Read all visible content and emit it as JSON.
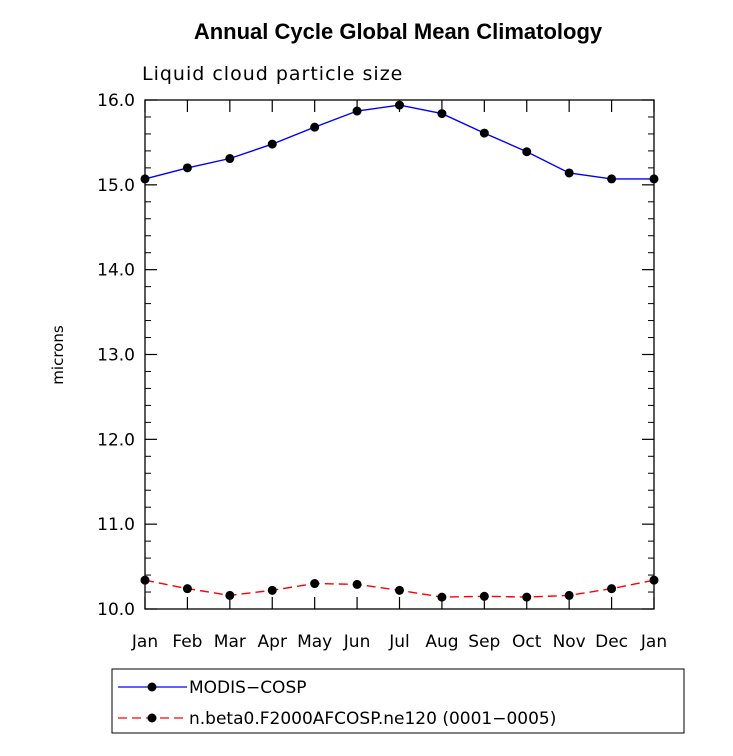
{
  "chart_data": {
    "type": "line",
    "title": "Annual Cycle Global Mean Climatology",
    "subtitle": "Liquid cloud particle size",
    "ylabel": "microns",
    "xlabel": "",
    "ylim": [
      10.0,
      16.0
    ],
    "yticks": [
      10.0,
      11.0,
      12.0,
      13.0,
      14.0,
      15.0,
      16.0
    ],
    "ytick_labels": [
      "10.0",
      "11.0",
      "12.0",
      "13.0",
      "14.0",
      "15.0",
      "16.0"
    ],
    "categories": [
      "Jan",
      "Feb",
      "Mar",
      "Apr",
      "May",
      "Jun",
      "Jul",
      "Aug",
      "Sep",
      "Oct",
      "Nov",
      "Dec",
      "Jan"
    ],
    "series": [
      {
        "name": "MODIS−COSP",
        "color": "#0000ff",
        "style": "solid",
        "marker": "dot",
        "values": [
          15.07,
          15.2,
          15.31,
          15.48,
          15.68,
          15.87,
          15.94,
          15.84,
          15.61,
          15.39,
          15.14,
          15.07,
          15.07
        ]
      },
      {
        "name": "n.beta0.F2000AFCOSP.ne120 (0001−0005)",
        "color": "#ff0000",
        "style": "dashed",
        "marker": "dot",
        "values": [
          10.34,
          10.24,
          10.16,
          10.22,
          10.3,
          10.29,
          10.22,
          10.14,
          10.15,
          10.14,
          10.16,
          10.24,
          10.34
        ]
      }
    ]
  }
}
